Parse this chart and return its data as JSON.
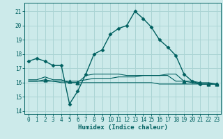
{
  "xlabel": "Humidex (Indice chaleur)",
  "bg_color": "#cceaea",
  "grid_color": "#aad4d4",
  "line_color": "#006060",
  "xlim": [
    -0.5,
    23.5
  ],
  "ylim": [
    13.8,
    21.6
  ],
  "yticks": [
    14,
    15,
    16,
    17,
    18,
    19,
    20,
    21
  ],
  "xticks": [
    0,
    1,
    2,
    3,
    4,
    5,
    6,
    7,
    8,
    9,
    10,
    11,
    12,
    13,
    14,
    15,
    16,
    17,
    18,
    19,
    20,
    21,
    22,
    23
  ],
  "series_main": {
    "x": [
      0,
      1,
      2,
      3,
      4,
      5,
      6,
      7,
      8,
      9,
      10,
      11,
      12,
      13,
      14,
      15,
      16,
      17,
      18,
      19,
      20,
      21,
      22,
      23
    ],
    "y": [
      17.5,
      17.7,
      17.5,
      17.2,
      17.2,
      14.5,
      15.4,
      16.6,
      18.0,
      18.3,
      19.4,
      19.8,
      20.0,
      21.0,
      20.5,
      19.9,
      19.0,
      18.5,
      17.9,
      16.6,
      16.1,
      15.9,
      15.9,
      15.9
    ]
  },
  "series_flat1": {
    "x": [
      0,
      1,
      2,
      3,
      4,
      5,
      6,
      7,
      8,
      9,
      10,
      11,
      12,
      13,
      14,
      15,
      16,
      17,
      18,
      19,
      20,
      21,
      22,
      23
    ],
    "y": [
      16.1,
      16.1,
      16.2,
      16.1,
      16.1,
      16.1,
      16.1,
      16.2,
      16.3,
      16.3,
      16.3,
      16.4,
      16.4,
      16.4,
      16.5,
      16.5,
      16.5,
      16.6,
      16.6,
      16.1,
      16.1,
      16.0,
      16.0,
      15.9
    ]
  },
  "series_flat2": {
    "x": [
      0,
      1,
      2,
      3,
      4,
      5,
      6,
      7,
      8,
      9,
      10,
      11,
      12,
      13,
      14,
      15,
      16,
      17,
      18,
      19,
      20,
      21,
      22,
      23
    ],
    "y": [
      16.2,
      16.2,
      16.4,
      16.2,
      16.2,
      16.0,
      16.0,
      16.5,
      16.6,
      16.6,
      16.6,
      16.6,
      16.5,
      16.5,
      16.5,
      16.5,
      16.5,
      16.5,
      16.1,
      16.1,
      16.0,
      15.9,
      15.9,
      15.9
    ]
  },
  "series_flat3": {
    "x": [
      0,
      1,
      2,
      3,
      4,
      5,
      6,
      7,
      8,
      9,
      10,
      11,
      12,
      13,
      14,
      15,
      16,
      17,
      18,
      19,
      20,
      21,
      22,
      23
    ],
    "y": [
      16.1,
      16.1,
      16.1,
      16.1,
      16.0,
      16.0,
      16.0,
      16.0,
      16.0,
      16.0,
      16.0,
      16.0,
      16.0,
      16.0,
      16.0,
      16.0,
      15.9,
      15.9,
      15.9,
      15.9,
      15.9,
      15.9,
      15.9,
      15.9
    ]
  },
  "markers_diamond": [
    0,
    1,
    2,
    3,
    4,
    5,
    6,
    7,
    8,
    9,
    10,
    11,
    12,
    13,
    14,
    15,
    16,
    17,
    18,
    19,
    20,
    21,
    22,
    23
  ],
  "markers_triangle_x": [
    2,
    5,
    6,
    19,
    21,
    22,
    23
  ],
  "markers_triangle_y": [
    16.2,
    16.1,
    16.0,
    16.1,
    16.0,
    15.9,
    15.9
  ]
}
